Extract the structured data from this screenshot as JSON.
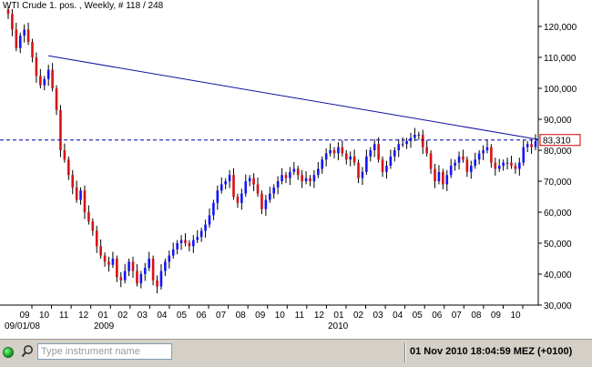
{
  "title": "WTI Crude 1. pos. , Weekly, # 118 / 248",
  "search": {
    "placeholder": "Type instrument name"
  },
  "status": {
    "datetime": "01 Nov 2010  18:04:59  MEZ (+0100)"
  },
  "icons": {
    "status": "green-circle-icon",
    "search": "magnifier-icon"
  },
  "colors": {
    "up": "#1515ff",
    "down": "#d81212",
    "trendline": "#1010a0",
    "price_box": "#d00000"
  },
  "chart_data": {
    "type": "candlestick",
    "title": "WTI Crude 1. pos. , Weekly, # 118 / 248",
    "ylim": [
      30,
      125
    ],
    "y_ticks": [
      {
        "value": 30,
        "label": "30,000"
      },
      {
        "value": 40,
        "label": "40,000"
      },
      {
        "value": 50,
        "label": "50,000"
      },
      {
        "value": 60,
        "label": "60,000"
      },
      {
        "value": 70,
        "label": "70,000"
      },
      {
        "value": 80,
        "label": "80,000"
      },
      {
        "value": 90,
        "label": "90,000"
      },
      {
        "value": 100,
        "label": "100,000"
      },
      {
        "value": 110,
        "label": "110,000"
      },
      {
        "value": 120,
        "label": "120,000"
      }
    ],
    "x_month_labels": [
      "09",
      "10",
      "11",
      "12",
      "01",
      "02",
      "03",
      "04",
      "05",
      "06",
      "07",
      "08",
      "09",
      "10",
      "11",
      "12",
      "01",
      "02",
      "03",
      "04",
      "05",
      "06",
      "07",
      "08",
      "09",
      "10"
    ],
    "x_year_labels": [
      "09/01/08",
      "2009",
      "2010"
    ],
    "current_price": {
      "value": 83.31,
      "label": "83,310"
    },
    "trendline": {
      "start_value": 110.5,
      "end_value": 83.5
    },
    "weekly_closes": [
      124,
      119,
      113,
      117,
      119,
      115,
      110,
      104,
      101,
      103,
      106,
      100,
      93,
      80,
      77,
      72,
      68,
      64,
      67,
      60,
      57,
      54,
      49,
      46,
      44,
      43,
      45,
      39,
      38,
      41,
      44,
      41,
      37,
      40,
      42,
      45,
      38,
      36,
      41,
      44,
      46,
      48,
      50,
      51,
      50,
      49,
      51,
      52,
      54,
      56,
      59,
      63,
      67,
      69,
      70,
      72,
      65,
      63,
      66,
      70,
      71,
      69,
      66,
      61,
      64,
      66,
      68,
      70,
      72,
      71,
      73,
      74,
      72,
      70,
      71,
      70,
      72,
      74,
      77,
      79,
      80,
      79,
      81,
      79,
      77,
      78,
      76,
      71,
      73,
      78,
      80,
      82,
      77,
      73,
      75,
      78,
      80,
      82,
      82,
      83,
      84,
      85,
      85,
      81,
      79,
      74,
      70,
      73,
      69,
      72,
      75,
      76,
      78,
      77,
      73,
      75,
      77,
      79,
      80,
      81,
      76,
      74,
      75,
      76,
      76,
      75,
      74,
      76,
      81,
      82,
      81,
      83
    ]
  }
}
